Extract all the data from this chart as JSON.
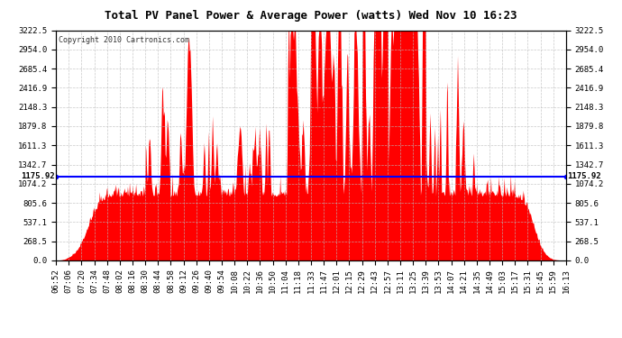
{
  "title": "Total PV Panel Power & Average Power (watts) Wed Nov 10 16:23",
  "copyright": "Copyright 2010 Cartronics.com",
  "avg_power": 1175.92,
  "y_max": 3222.5,
  "y_min": 0.0,
  "ytick_labels": [
    "0.0",
    "268.5",
    "537.1",
    "805.6",
    "1074.2",
    "1342.7",
    "1611.3",
    "1879.8",
    "2148.3",
    "2416.9",
    "2685.4",
    "2954.0",
    "3222.5"
  ],
  "ytick_values": [
    0.0,
    268.5,
    537.1,
    805.6,
    1074.2,
    1342.7,
    1611.3,
    1879.8,
    2148.3,
    2416.9,
    2685.4,
    2954.0,
    3222.5
  ],
  "xtick_labels": [
    "06:52",
    "07:06",
    "07:20",
    "07:34",
    "07:48",
    "08:02",
    "08:16",
    "08:30",
    "08:44",
    "08:58",
    "09:12",
    "09:26",
    "09:40",
    "09:54",
    "10:08",
    "10:22",
    "10:36",
    "10:50",
    "11:04",
    "11:18",
    "11:33",
    "11:47",
    "12:01",
    "12:15",
    "12:29",
    "12:43",
    "12:57",
    "13:11",
    "13:25",
    "13:39",
    "13:53",
    "14:07",
    "14:21",
    "14:35",
    "14:49",
    "15:03",
    "15:17",
    "15:31",
    "15:45",
    "15:59",
    "16:13"
  ],
  "fill_color": "#FF0000",
  "avg_line_color": "#0000FF",
  "background_color": "#FFFFFF",
  "grid_color": "#BBBBBB",
  "border_color": "#000000",
  "title_fontsize": 9,
  "copyright_fontsize": 6,
  "tick_fontsize": 6.5
}
